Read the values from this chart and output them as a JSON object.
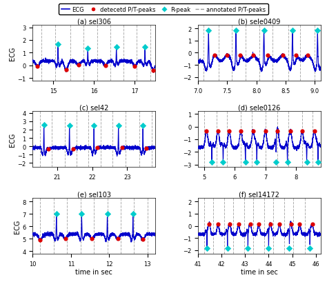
{
  "title": "",
  "legend": {
    "ecg_label": "ECG",
    "detected_label": "detecetd P/T-peaks",
    "rpeak_label": "R-peak",
    "annotated_label": "annotated P/T-peaks"
  },
  "subplots": [
    {
      "title": "(a) sel306",
      "xlim": [
        14.5,
        17.5
      ],
      "ylim": [
        -1.2,
        3.2
      ],
      "yticks": [
        -1,
        0,
        1,
        2,
        3
      ],
      "xticks": [
        15,
        16,
        17
      ],
      "xlabel": "",
      "ylabel": "ECG",
      "dashed_lines": [
        14.72,
        15.05,
        15.42,
        15.75,
        16.08,
        16.41,
        16.72,
        17.05,
        17.38
      ],
      "r_peaks_x": [
        15.12,
        15.85,
        16.55,
        17.25
      ],
      "r_peaks_y": [
        1.7,
        1.35,
        1.45,
        1.45
      ],
      "det_peaks_x": [
        14.62,
        15.32,
        15.62,
        16.28,
        17.0,
        17.45
      ],
      "det_peaks_y": [
        -0.05,
        -0.35,
        0.05,
        0.0,
        -0.05,
        -0.38
      ]
    },
    {
      "title": "(b) sele0409",
      "xlim": [
        7.0,
        9.1
      ],
      "ylim": [
        -2.3,
        2.3
      ],
      "yticks": [
        -2,
        -1,
        0,
        1,
        2
      ],
      "xticks": [
        7,
        7.5,
        8,
        8.5,
        9
      ],
      "xlabel": "",
      "ylabel": "",
      "dashed_lines": [
        7.1,
        7.35,
        7.58,
        7.82,
        8.05,
        8.28,
        8.55,
        8.75,
        9.0
      ],
      "r_peaks_x": [
        7.18,
        7.65,
        8.13,
        8.62,
        9.05
      ],
      "r_peaks_y": [
        1.85,
        1.85,
        1.85,
        1.85,
        1.85
      ],
      "det_peaks_x": [
        7.28,
        7.5,
        7.72,
        7.95,
        8.2,
        8.45,
        8.68,
        8.88
      ],
      "det_peaks_y": [
        -0.2,
        -0.22,
        -0.22,
        -0.22,
        -0.22,
        -0.22,
        -0.22,
        -0.22
      ]
    },
    {
      "title": "(c) sel42",
      "xlim": [
        20.3,
        23.8
      ],
      "ylim": [
        -2.5,
        4.2
      ],
      "yticks": [
        -2,
        -1,
        0,
        1,
        2,
        3,
        4
      ],
      "xticks": [
        21,
        22,
        23
      ],
      "xlabel": "",
      "ylabel": "ECG",
      "dashed_lines": [
        20.5,
        20.85,
        21.22,
        21.55,
        21.88,
        22.25,
        22.58,
        22.95,
        23.35,
        23.7
      ],
      "r_peaks_x": [
        20.62,
        21.35,
        22.05,
        22.75,
        23.45
      ],
      "r_peaks_y": [
        2.6,
        2.5,
        2.5,
        2.5,
        2.5
      ],
      "det_peaks_x": [
        20.75,
        21.45,
        22.15,
        22.85,
        23.55
      ],
      "det_peaks_y": [
        -0.35,
        -0.35,
        -0.15,
        -0.15,
        -0.2
      ]
    },
    {
      "title": "(d) sele0126",
      "xlim": [
        4.8,
        8.8
      ],
      "ylim": [
        -3.2,
        1.2
      ],
      "yticks": [
        -3,
        -2,
        -1,
        0,
        1
      ],
      "xticks": [
        5,
        6,
        7,
        8
      ],
      "xlabel": "",
      "ylabel": "",
      "dashed_lines": [
        5.0,
        5.4,
        5.75,
        6.2,
        6.55,
        7.0,
        7.4,
        7.75,
        8.2,
        8.55
      ],
      "r_peaks_x": [
        5.25,
        5.62,
        6.35,
        6.72,
        7.35,
        7.72,
        8.35,
        8.72
      ],
      "r_peaks_y": [
        -2.8,
        -2.8,
        -2.8,
        -2.8,
        -2.8,
        -2.8,
        -2.8,
        -2.8
      ],
      "det_peaks_x": [
        5.08,
        5.45,
        5.82,
        6.2,
        6.6,
        7.0,
        7.4,
        7.82,
        8.2,
        8.6
      ],
      "det_peaks_y": [
        -0.35,
        -0.35,
        -0.35,
        -0.35,
        -0.35,
        -0.35,
        -0.35,
        -0.35,
        -0.35,
        -0.35
      ]
    },
    {
      "title": "(e) sel103",
      "xlim": [
        10.0,
        13.2
      ],
      "ylim": [
        3.8,
        8.3
      ],
      "yticks": [
        4,
        5,
        6,
        7,
        8
      ],
      "xticks": [
        10,
        11,
        12,
        13
      ],
      "xlabel": "time in sec",
      "ylabel": "ECG",
      "dashed_lines": [
        10.2,
        10.55,
        10.9,
        11.25,
        11.6,
        11.95,
        12.3,
        12.65,
        13.0
      ],
      "r_peaks_x": [
        10.62,
        11.28,
        11.95,
        12.62
      ],
      "r_peaks_y": [
        7.0,
        7.0,
        7.0,
        7.0
      ],
      "det_peaks_x": [
        10.2,
        10.85,
        11.55,
        12.22,
        12.88
      ],
      "det_peaks_y": [
        4.9,
        5.0,
        5.0,
        5.0,
        4.95
      ]
    },
    {
      "title": "(f) sel14172",
      "xlim": [
        41.0,
        46.2
      ],
      "ylim": [
        -2.3,
        2.3
      ],
      "yticks": [
        -2,
        -1,
        0,
        1,
        2
      ],
      "xticks": [
        41,
        42,
        43,
        44,
        45,
        46
      ],
      "xlabel": "time in sec",
      "ylabel": "",
      "dashed_lines": [
        41.25,
        41.65,
        42.1,
        42.5,
        42.95,
        43.35,
        43.8,
        44.2,
        44.65,
        45.05,
        45.55
      ],
      "r_peaks_x": [
        41.38,
        42.25,
        43.12,
        44.0,
        44.88,
        45.75
      ],
      "r_peaks_y": [
        -1.85,
        -1.85,
        -1.85,
        -1.85,
        -1.85,
        -1.85
      ],
      "det_peaks_x": [
        41.48,
        41.85,
        42.35,
        42.72,
        43.22,
        43.58,
        44.08,
        44.45,
        44.95,
        45.32,
        45.85
      ],
      "det_peaks_y": [
        0.15,
        0.12,
        0.12,
        0.12,
        0.12,
        0.12,
        0.12,
        0.12,
        0.12,
        0.12,
        0.12
      ]
    }
  ],
  "colors": {
    "ecg_line": "#0000cc",
    "detected": "#dd0000",
    "rpeak": "#00cccc",
    "annotated": "#999999",
    "background": "#ffffff"
  }
}
